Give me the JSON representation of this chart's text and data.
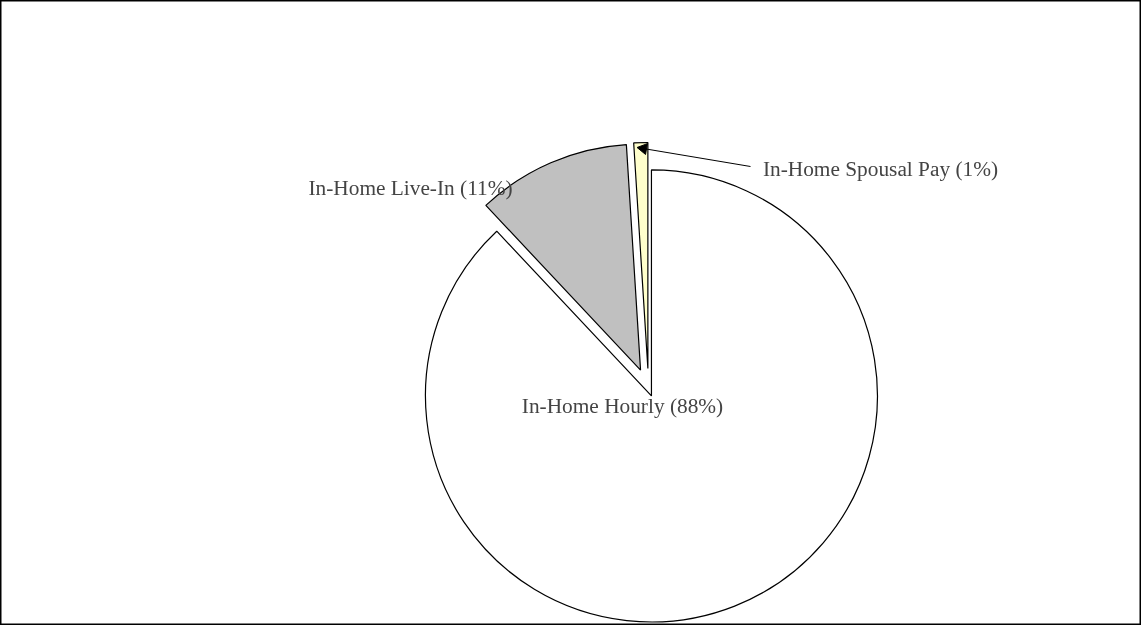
{
  "chart_data": {
    "type": "pie",
    "categories": [
      "In-Home Hourly (88%)",
      "In-Home Live-In (11%)",
      "In-Home Spousal Pay (1%)"
    ],
    "values": [
      88,
      11,
      1
    ],
    "colors": [
      "#ffffff",
      "#c0c0c0",
      "#ffffcc"
    ],
    "legend": false
  }
}
